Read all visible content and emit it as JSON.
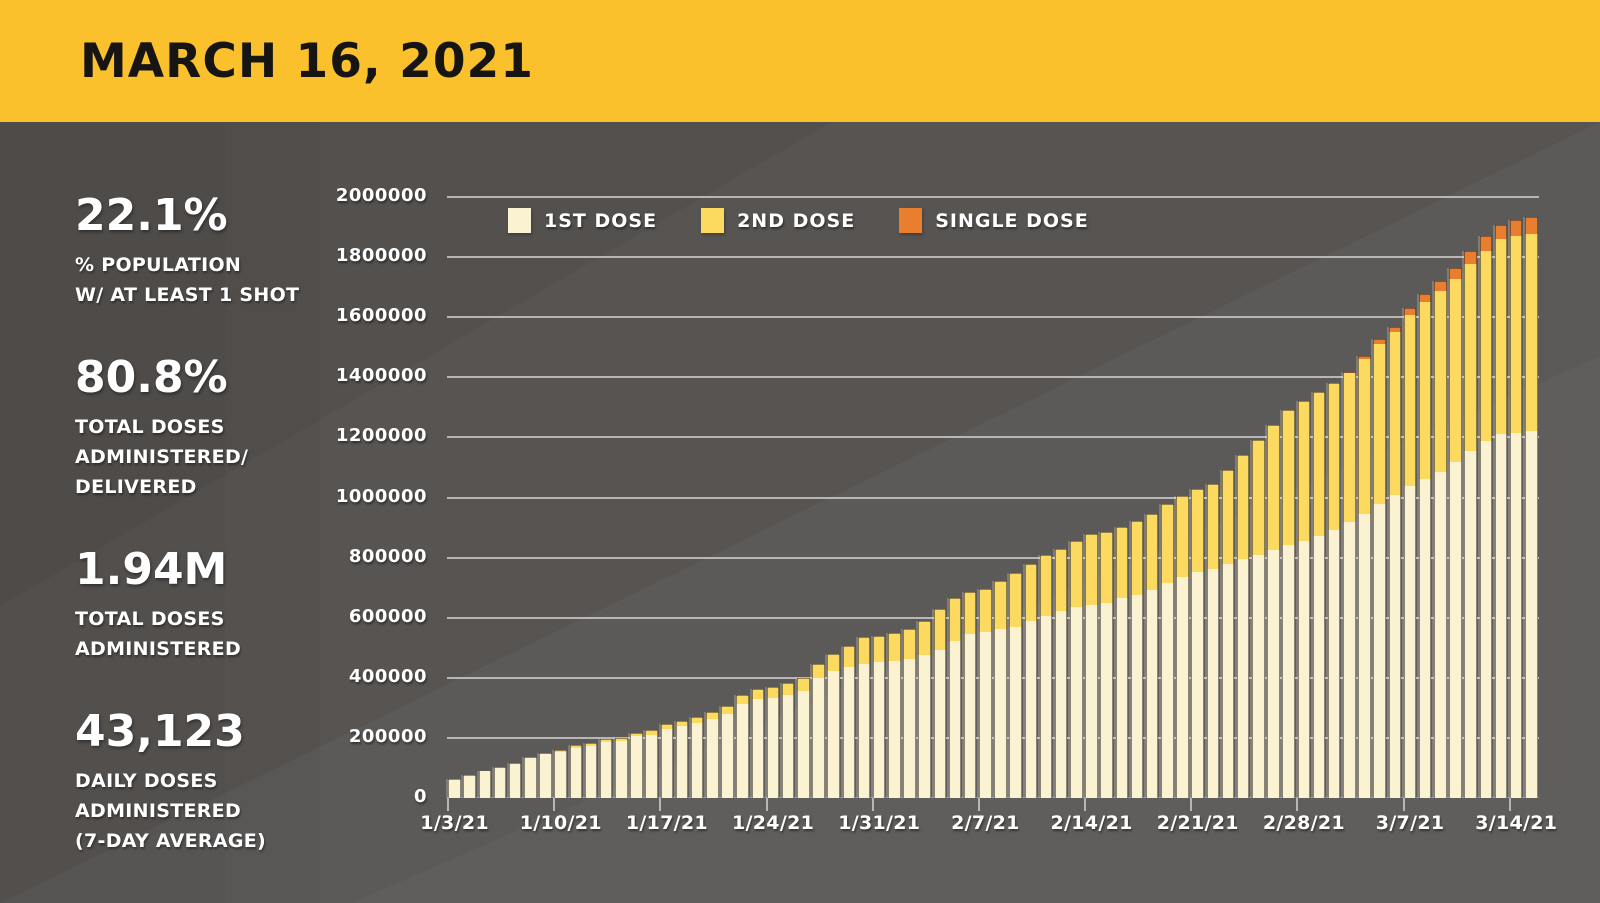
{
  "header": {
    "title": "MARCH 16, 2021"
  },
  "stats": [
    {
      "value": "22.1%",
      "label_lines": [
        "% POPULATION",
        "W/ AT LEAST 1 SHOT"
      ]
    },
    {
      "value": "80.8%",
      "label_lines": [
        "TOTAL DOSES",
        "ADMINISTERED/",
        "DELIVERED"
      ]
    },
    {
      "value": "1.94M",
      "label_lines": [
        "TOTAL DOSES",
        "ADMINISTERED"
      ]
    },
    {
      "value": "43,123",
      "label_lines": [
        "DAILY DOSES",
        "ADMINISTERED",
        "(7-DAY AVERAGE)"
      ]
    }
  ],
  "colors": {
    "header_bg": "#FBC12D",
    "background": "#575452",
    "first_dose": "#FAF2D0",
    "second_dose": "#FCD95F",
    "single_dose": "#EA7E2F",
    "gridline": "#C9C7C5",
    "text": "#FFFFFF",
    "title_text": "#171514"
  },
  "chart_data": {
    "type": "bar",
    "stacked": true,
    "grid": true,
    "legend_position": "top-left-inside",
    "y_axis": {
      "min": 0,
      "max": 2000000,
      "step": 200000,
      "tick_labels": [
        "0",
        "200000",
        "400000",
        "600000",
        "800000",
        "1000000",
        "1200000",
        "1400000",
        "1600000",
        "1800000",
        "2000000"
      ]
    },
    "x_axis": {
      "tick_labels": [
        "1/3/21",
        "1/10/21",
        "1/17/21",
        "1/24/21",
        "1/31/21",
        "2/7/21",
        "2/14/21",
        "2/21/21",
        "2/28/21",
        "3/7/21",
        "3/14/21"
      ],
      "tick_day_indices": [
        0,
        7,
        14,
        21,
        28,
        35,
        42,
        49,
        56,
        63,
        70
      ]
    },
    "categories": [
      "1/3/21",
      "1/4/21",
      "1/5/21",
      "1/6/21",
      "1/7/21",
      "1/8/21",
      "1/9/21",
      "1/10/21",
      "1/11/21",
      "1/12/21",
      "1/13/21",
      "1/14/21",
      "1/15/21",
      "1/16/21",
      "1/17/21",
      "1/18/21",
      "1/19/21",
      "1/20/21",
      "1/21/21",
      "1/22/21",
      "1/23/21",
      "1/24/21",
      "1/25/21",
      "1/26/21",
      "1/27/21",
      "1/28/21",
      "1/29/21",
      "1/30/21",
      "1/31/21",
      "2/1/21",
      "2/2/21",
      "2/3/21",
      "2/4/21",
      "2/5/21",
      "2/6/21",
      "2/7/21",
      "2/8/21",
      "2/9/21",
      "2/10/21",
      "2/11/21",
      "2/12/21",
      "2/13/21",
      "2/14/21",
      "2/15/21",
      "2/16/21",
      "2/17/21",
      "2/18/21",
      "2/19/21",
      "2/20/21",
      "2/21/21",
      "2/22/21",
      "2/23/21",
      "2/24/21",
      "2/25/21",
      "2/26/21",
      "2/27/21",
      "2/28/21",
      "3/1/21",
      "3/2/21",
      "3/3/21",
      "3/4/21",
      "3/5/21",
      "3/6/21",
      "3/7/21",
      "3/8/21",
      "3/9/21",
      "3/10/21",
      "3/11/21",
      "3/12/21",
      "3/13/21",
      "3/14/21",
      "3/15/21"
    ],
    "series": [
      {
        "name": "1ST DOSE",
        "color": "#FAF2D0",
        "values": [
          64000,
          77000,
          89000,
          101000,
          113000,
          132000,
          146000,
          153000,
          167000,
          174000,
          185000,
          190000,
          205000,
          211000,
          229000,
          238000,
          250000,
          264000,
          280000,
          312000,
          330000,
          334000,
          344000,
          357000,
          398000,
          424000,
          436000,
          447000,
          451000,
          456000,
          464000,
          477000,
          494000,
          524000,
          545000,
          554000,
          563000,
          570000,
          588000,
          605000,
          621000,
          635000,
          643000,
          649000,
          665000,
          676000,
          693000,
          715000,
          735000,
          753000,
          762000,
          778000,
          794000,
          810000,
          826000,
          841000,
          855000,
          871000,
          891000,
          918000,
          946000,
          977000,
          1007000,
          1037000,
          1062000,
          1086000,
          1119000,
          1155000,
          1188000,
          1210000,
          1216000,
          1221000
        ]
      },
      {
        "name": "2ND DOSE",
        "color": "#FCD95F",
        "values": [
          0,
          0,
          1000,
          1000,
          2000,
          3000,
          4000,
          6000,
          8000,
          9000,
          10000,
          11000,
          13000,
          14000,
          16000,
          18000,
          20000,
          23000,
          26000,
          30000,
          34000,
          36000,
          38000,
          42000,
          47000,
          56000,
          71000,
          88000,
          89000,
          94000,
          100000,
          112000,
          134000,
          140000,
          141000,
          141000,
          159000,
          178000,
          191000,
          203000,
          209000,
          220000,
          235000,
          236000,
          237000,
          245000,
          253000,
          263000,
          271000,
          277000,
          282000,
          312000,
          346000,
          380000,
          414000,
          449000,
          465000,
          479000,
          489000,
          497000,
          514000,
          535000,
          544000,
          571000,
          588000,
          602000,
          608000,
          621000,
          633000,
          649000,
          654000,
          655000
        ]
      },
      {
        "name": "SINGLE DOSE",
        "color": "#EA7E2F",
        "values": [
          0,
          0,
          0,
          0,
          0,
          0,
          0,
          0,
          0,
          0,
          0,
          0,
          0,
          0,
          0,
          0,
          0,
          0,
          0,
          0,
          0,
          0,
          0,
          0,
          0,
          0,
          0,
          0,
          0,
          0,
          0,
          0,
          0,
          0,
          0,
          0,
          0,
          0,
          0,
          0,
          0,
          0,
          0,
          0,
          0,
          0,
          0,
          0,
          0,
          0,
          0,
          0,
          0,
          0,
          0,
          0,
          0,
          0,
          0,
          4000,
          12000,
          14000,
          16000,
          22000,
          27000,
          33000,
          38000,
          44000,
          48000,
          49000,
          52000,
          58000
        ]
      }
    ],
    "legend": [
      {
        "label": "1ST DOSE",
        "color": "#FAF2D0"
      },
      {
        "label": "2ND DOSE",
        "color": "#FCD95F"
      },
      {
        "label": "SINGLE DOSE",
        "color": "#EA7E2F"
      }
    ]
  }
}
